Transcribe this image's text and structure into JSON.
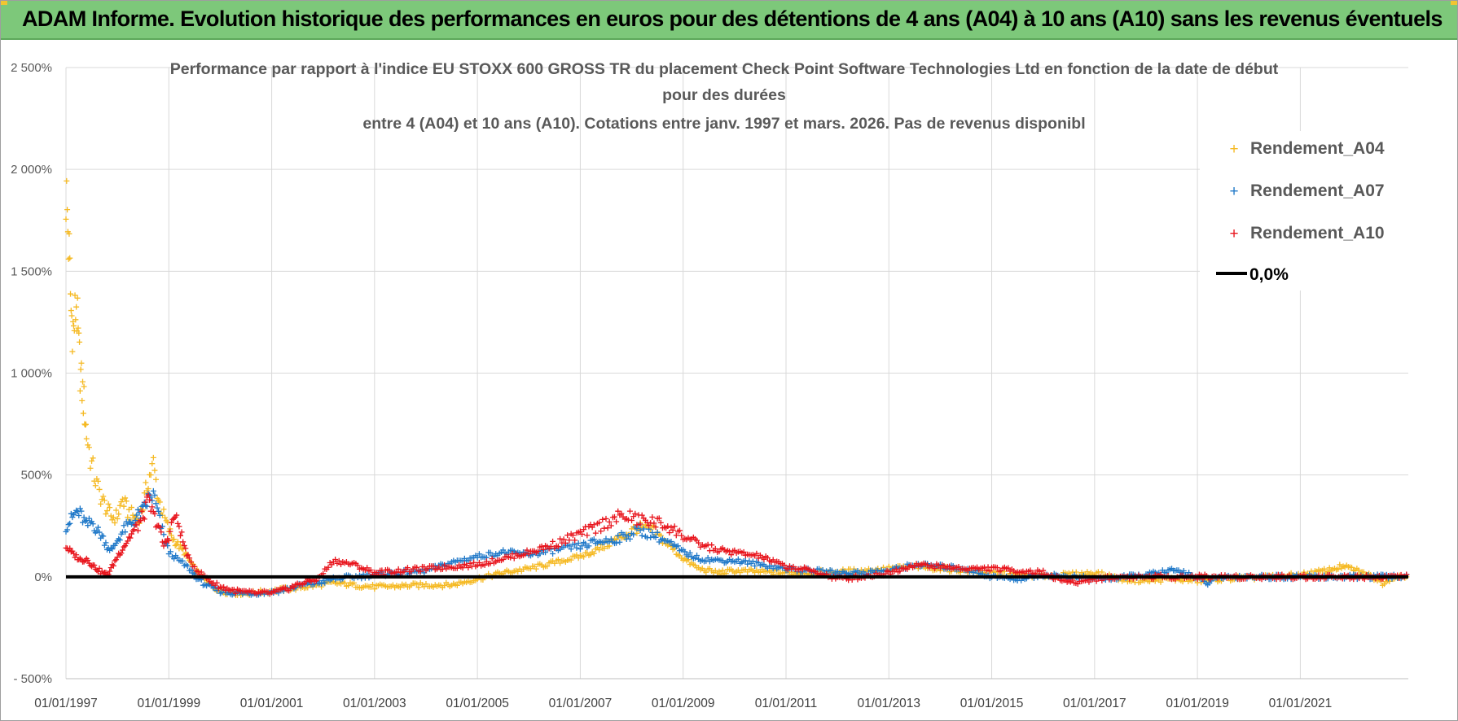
{
  "banner": {
    "title": "ADAM Informe. Evolution historique des performances en euros pour des détentions de 4 ans (A04) à 10 ans (A10) sans les revenus éventuels"
  },
  "colors": {
    "banner_bg": "#7dc87a",
    "a04": "#f5b922",
    "a07": "#1f78c8",
    "a10": "#e8141c",
    "zero_line": "#000000",
    "grid": "#d9d9d9"
  },
  "chart_data": {
    "type": "scatter",
    "title_lines": [
      "Performance par rapport à l'indice EU STOXX 600 GROSS TR  du placement Check Point Software Technologies Ltd en fonction de la date de début",
      "pour des durées",
      "entre 4 (A04) et 10 ans (A10).  Cotations entre janv. 1997 et mars. 2026.  Pas de revenus disponibl"
    ],
    "y_unit": "%",
    "ylim": [
      -500,
      2500
    ],
    "yticks": [
      2500,
      2000,
      1500,
      1000,
      500,
      0,
      -500
    ],
    "ytick_labels": [
      "2 500%",
      "2 000%",
      "1 500%",
      "1 000%",
      "500%",
      "0%",
      "- 500%"
    ],
    "xlim": [
      1997.0,
      2023.1
    ],
    "xticks": [
      1997,
      1999,
      2001,
      2003,
      2005,
      2007,
      2009,
      2011,
      2013,
      2015,
      2017,
      2019,
      2021
    ],
    "xtick_labels": [
      "01/01/1997",
      "01/01/1999",
      "01/01/2001",
      "01/01/2003",
      "01/01/2005",
      "01/01/2007",
      "01/01/2009",
      "01/01/2011",
      "01/01/2013",
      "01/01/2015",
      "01/01/2017",
      "01/01/2019",
      "01/01/2021"
    ],
    "legend_position": "top-right",
    "series": [
      {
        "name": "Rendement_A04",
        "marker": "+",
        "color_key": "a04",
        "x": [
          1997.0,
          1997.05,
          1997.1,
          1997.15,
          1997.2,
          1997.25,
          1997.3,
          1997.35,
          1997.4,
          1997.5,
          1997.6,
          1997.7,
          1997.8,
          1997.9,
          1998.0,
          1998.1,
          1998.2,
          1998.3,
          1998.4,
          1998.5,
          1998.6,
          1998.7,
          1998.8,
          1998.9,
          1999.0,
          1999.1,
          1999.2,
          1999.3,
          1999.4,
          1999.5,
          1999.6,
          1999.8,
          2000.0,
          2000.3,
          2000.6,
          2001.0,
          2001.3,
          2001.6,
          2001.9,
          2002.2,
          2002.6,
          2003.0,
          2003.5,
          2004.0,
          2004.5,
          2005.0,
          2005.5,
          2006.0,
          2006.5,
          2007.0,
          2007.3,
          2007.6,
          2007.9,
          2008.1,
          2008.4,
          2008.7,
          2009.0,
          2009.3,
          2009.7,
          2010.0,
          2010.5,
          2011.0,
          2011.5,
          2012.0,
          2012.5,
          2013.0,
          2013.5,
          2014.0,
          2014.5,
          2015.0,
          2015.5,
          2016.0,
          2016.5,
          2017.0,
          2017.5,
          2018.0,
          2018.5,
          2019.0,
          2019.5,
          2020.0,
          2020.5,
          2021.0,
          2021.5,
          2021.8,
          2022.0,
          2022.2,
          2022.4,
          2022.6,
          2022.8,
          2023.1
        ],
        "y": [
          1900,
          1650,
          1300,
          1200,
          1350,
          1100,
          950,
          850,
          700,
          550,
          450,
          380,
          330,
          290,
          300,
          380,
          320,
          300,
          280,
          350,
          480,
          550,
          380,
          300,
          230,
          180,
          150,
          120,
          80,
          40,
          10,
          -40,
          -70,
          -80,
          -80,
          -70,
          -60,
          -50,
          -40,
          -30,
          -40,
          -50,
          -45,
          -40,
          -40,
          -10,
          20,
          40,
          70,
          100,
          130,
          170,
          210,
          240,
          230,
          160,
          90,
          40,
          20,
          30,
          25,
          20,
          20,
          25,
          30,
          40,
          50,
          40,
          30,
          20,
          10,
          5,
          10,
          20,
          -10,
          -20,
          -10,
          -20,
          -10,
          -5,
          0,
          10,
          30,
          50,
          40,
          20,
          0,
          -30,
          0,
          0
        ]
      },
      {
        "name": "Rendement_A07",
        "marker": "+",
        "color_key": "a07",
        "x": [
          1997.0,
          1997.1,
          1997.2,
          1997.3,
          1997.4,
          1997.5,
          1997.6,
          1997.7,
          1997.8,
          1997.9,
          1998.0,
          1998.1,
          1998.2,
          1998.3,
          1998.4,
          1998.5,
          1998.6,
          1998.7,
          1998.8,
          1998.9,
          1999.0,
          1999.2,
          1999.4,
          1999.6,
          1999.8,
          2000.0,
          2000.3,
          2000.6,
          2001.0,
          2001.3,
          2001.6,
          2001.9,
          2002.2,
          2002.6,
          2003.0,
          2003.5,
          2004.0,
          2004.5,
          2005.0,
          2005.5,
          2006.0,
          2006.5,
          2007.0,
          2007.3,
          2007.6,
          2007.9,
          2008.1,
          2008.4,
          2008.7,
          2009.0,
          2009.3,
          2009.7,
          2010.0,
          2010.5,
          2011.0,
          2011.5,
          2012.0,
          2012.5,
          2013.0,
          2013.5,
          2014.0,
          2014.5,
          2015.0,
          2015.5,
          2016.0,
          2016.5,
          2017.0,
          2017.5,
          2018.0,
          2018.5,
          2018.8,
          2019.0,
          2019.2,
          2019.4,
          2019.6,
          2020.0,
          2020.5,
          2021.0,
          2021.5,
          2022.0,
          2022.5,
          2023.1
        ],
        "y": [
          250,
          280,
          320,
          300,
          250,
          270,
          230,
          200,
          150,
          130,
          180,
          220,
          250,
          270,
          300,
          320,
          380,
          400,
          300,
          200,
          120,
          80,
          40,
          -20,
          -50,
          -70,
          -80,
          -80,
          -75,
          -60,
          -40,
          -30,
          -10,
          0,
          10,
          20,
          30,
          70,
          100,
          120,
          110,
          130,
          150,
          170,
          180,
          200,
          230,
          210,
          170,
          120,
          90,
          80,
          80,
          60,
          40,
          30,
          20,
          20,
          30,
          60,
          50,
          40,
          0,
          -10,
          10,
          0,
          -10,
          -5,
          10,
          30,
          20,
          -10,
          -30,
          -5,
          0,
          0,
          0,
          0,
          0,
          0,
          0,
          0
        ]
      },
      {
        "name": "Rendement_A10",
        "marker": "+",
        "color_key": "a10",
        "x": [
          1997.0,
          1997.1,
          1997.2,
          1997.3,
          1997.4,
          1997.5,
          1997.6,
          1997.7,
          1997.8,
          1997.9,
          1998.0,
          1998.1,
          1998.2,
          1998.3,
          1998.4,
          1998.5,
          1998.6,
          1998.7,
          1998.8,
          1998.9,
          1999.0,
          1999.1,
          1999.2,
          1999.3,
          1999.4,
          1999.6,
          1999.8,
          2000.0,
          2000.3,
          2000.6,
          2001.0,
          2001.3,
          2001.6,
          2001.9,
          2002.2,
          2002.6,
          2003.0,
          2003.5,
          2004.0,
          2004.5,
          2005.0,
          2005.5,
          2006.0,
          2006.5,
          2007.0,
          2007.3,
          2007.6,
          2007.9,
          2008.1,
          2008.4,
          2008.7,
          2009.0,
          2009.3,
          2009.7,
          2010.0,
          2010.5,
          2011.0,
          2011.5,
          2012.0,
          2012.5,
          2013.0,
          2013.5,
          2014.0,
          2014.5,
          2015.0,
          2015.5,
          2016.0,
          2016.3,
          2016.6,
          2017.0,
          2017.5,
          2018.0,
          2018.5,
          2019.0,
          2019.5,
          2020.0,
          2020.5,
          2021.0,
          2021.5,
          2022.0,
          2022.5,
          2023.1
        ],
        "y": [
          150,
          120,
          100,
          80,
          90,
          60,
          40,
          20,
          10,
          50,
          100,
          140,
          180,
          220,
          250,
          300,
          370,
          300,
          250,
          150,
          200,
          300,
          250,
          150,
          80,
          20,
          -20,
          -50,
          -70,
          -80,
          -80,
          -60,
          -30,
          -10,
          80,
          60,
          20,
          30,
          40,
          50,
          60,
          90,
          120,
          160,
          210,
          240,
          280,
          300,
          280,
          270,
          250,
          200,
          160,
          130,
          120,
          100,
          50,
          30,
          -10,
          0,
          20,
          60,
          50,
          40,
          40,
          30,
          20,
          -10,
          -30,
          -10,
          0,
          0,
          0,
          0,
          0,
          0,
          0,
          0,
          0,
          0,
          0,
          0
        ]
      }
    ],
    "reference_line": {
      "name": "0,0%",
      "y": 0,
      "color_key": "zero_line"
    },
    "legend_labels": [
      "Rendement_A04",
      "Rendement_A07",
      "Rendement_A10",
      "0,0%"
    ]
  }
}
